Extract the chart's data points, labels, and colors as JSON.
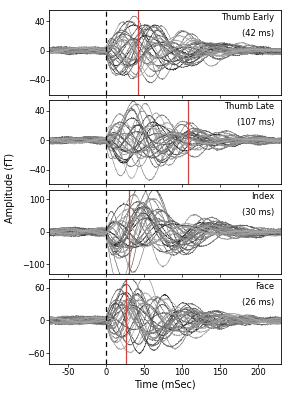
{
  "panels": [
    {
      "label_line1": "Thumb Early",
      "label_line2": "(42 ms)",
      "ylim": [
        -60,
        55
      ],
      "yticks": [
        -40,
        0,
        40
      ],
      "red_line_x": 42,
      "amplitude_scale": 42,
      "n_channels": 30,
      "panel_seed": 1
    },
    {
      "label_line1": "Thumb Late",
      "label_line2": "(107 ms)",
      "ylim": [
        -60,
        55
      ],
      "yticks": [
        -40,
        0,
        40
      ],
      "red_line_x": 107,
      "amplitude_scale": 42,
      "n_channels": 30,
      "panel_seed": 2
    },
    {
      "label_line1": "Index",
      "label_line2": "(30 ms)",
      "ylim": [
        -130,
        130
      ],
      "yticks": [
        -100,
        0,
        100
      ],
      "red_line_x": 30,
      "amplitude_scale": 110,
      "n_channels": 30,
      "panel_seed": 3
    },
    {
      "label_line1": "Face",
      "label_line2": "(26 ms)",
      "ylim": [
        -80,
        75
      ],
      "yticks": [
        -60,
        0,
        60
      ],
      "red_line_x": 26,
      "amplitude_scale": 62,
      "n_channels": 30,
      "panel_seed": 4
    }
  ],
  "xlim": [
    -75,
    230
  ],
  "xticks": [
    -50,
    0,
    50,
    100,
    150,
    200
  ],
  "xlabel": "Time (mSec)",
  "ylabel": "Amplitude (fT)",
  "background_color": "#ffffff",
  "red_line_color": "#cc4444",
  "dashed_line_color": "#000000"
}
